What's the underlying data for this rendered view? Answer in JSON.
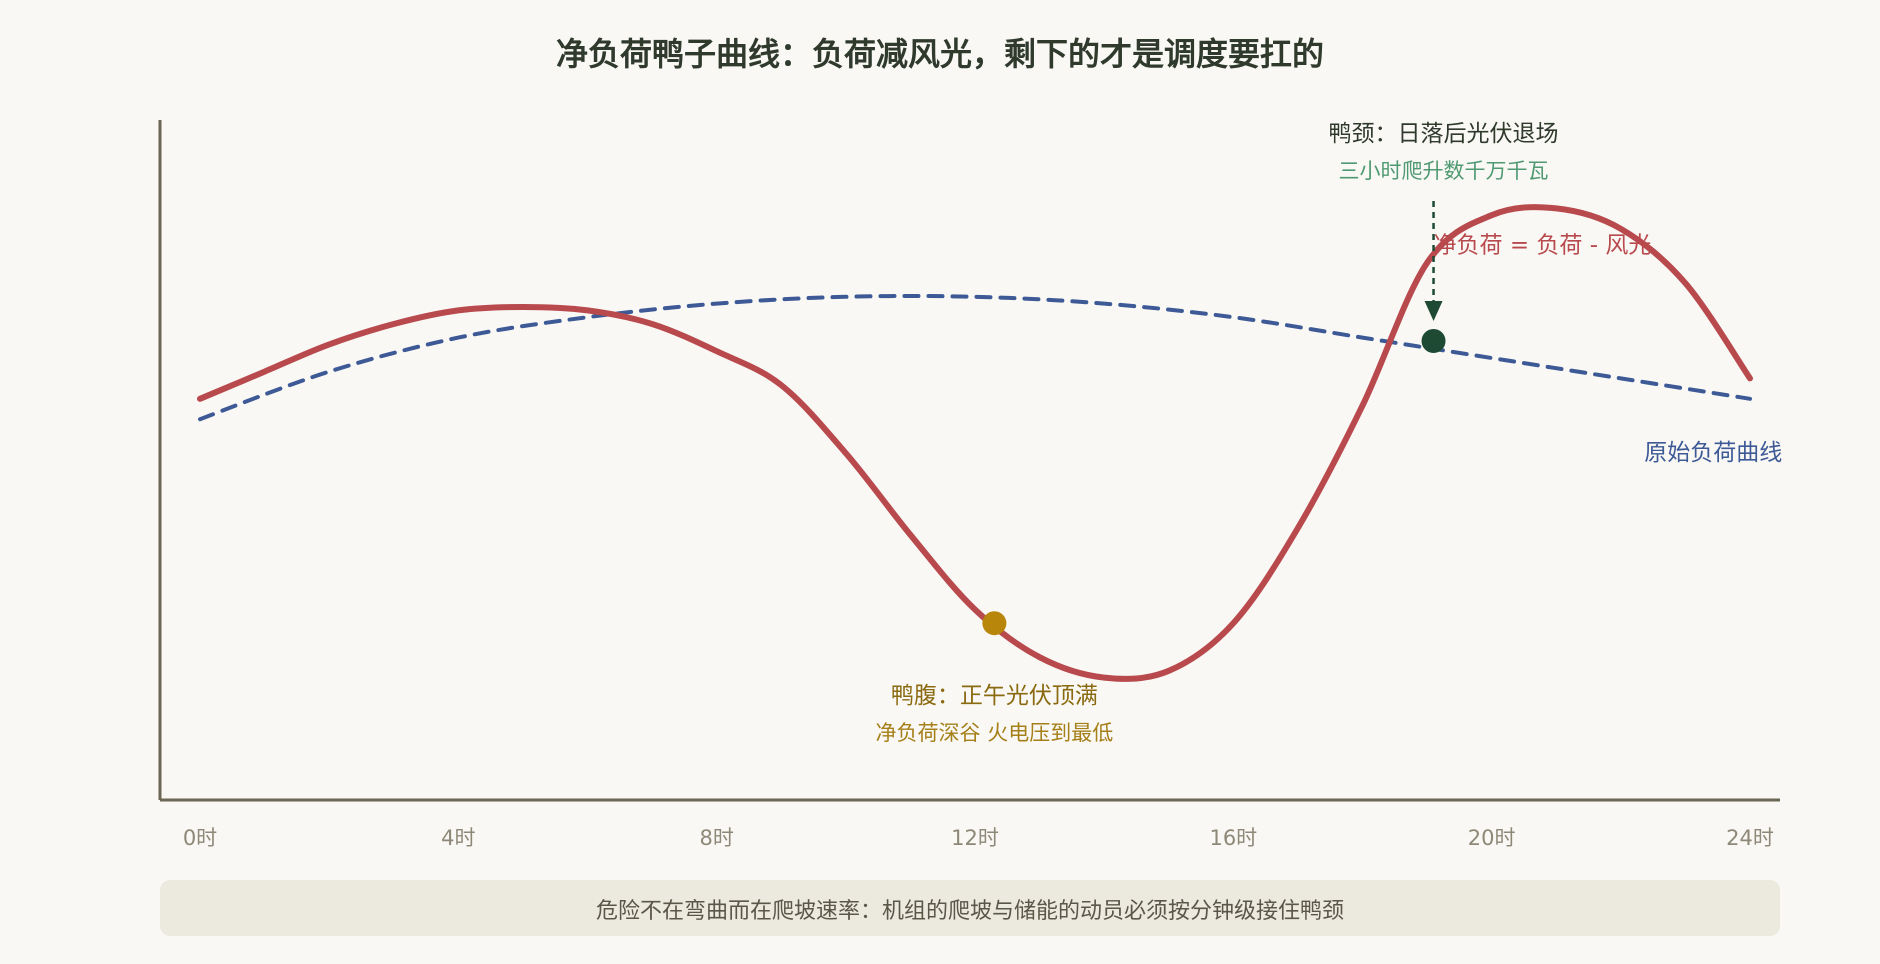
{
  "colors": {
    "background": "#faf8f4",
    "title": "#2f3a2c",
    "axis": "#6b6753",
    "tick": "#8d8877",
    "net_load": "#b84a4e",
    "original_load": "#3d5a96",
    "belly": "#b8860b",
    "neck": "#1e4a34",
    "neck_sub": "#4f9a72",
    "footer_bg": "#ece9df",
    "footer_text": "#5a5648"
  },
  "chart_data": {
    "type": "line",
    "title": "净负荷鸭子曲线：负荷减风光，剩下的才是调度要扛的",
    "xlabel": "",
    "ylabel": "",
    "x_ticks": [
      "0时",
      "4时",
      "8时",
      "12时",
      "16时",
      "20时",
      "24时"
    ],
    "xlim": [
      0,
      24
    ],
    "ylim": [
      0,
      100
    ],
    "grid": false,
    "series": [
      {
        "name": "原始负荷曲线",
        "style": "dashed",
        "color": "#3d5a96",
        "x": [
          0,
          2,
          4,
          6,
          8,
          10,
          12,
          14,
          16,
          18,
          20,
          22,
          24
        ],
        "y": [
          56,
          63,
          68,
          71,
          73,
          74,
          74,
          73,
          71,
          68,
          65,
          62,
          59
        ]
      },
      {
        "name": "净负荷 = 负荷 - 风光",
        "style": "solid",
        "color": "#b84a4e",
        "x": [
          0,
          1,
          2,
          3,
          4,
          5,
          6,
          7,
          8,
          9,
          10,
          11,
          12,
          13,
          14,
          15,
          16,
          17,
          18,
          19,
          20,
          21,
          22,
          23,
          24
        ],
        "y": [
          59,
          63,
          67,
          70,
          72,
          72.5,
          72,
          70,
          66,
          61,
          51,
          39,
          28,
          21,
          18,
          19,
          26,
          40,
          58,
          79,
          86,
          87,
          84,
          76,
          62
        ]
      }
    ],
    "annotations": [
      {
        "name": "belly",
        "x": 12.3,
        "y": 26,
        "title": "鸭腹：正午光伏顶满",
        "subtitle": "净负荷深谷 火电压到最低"
      },
      {
        "name": "neck",
        "x": 19.1,
        "y": 67.5,
        "title": "鸭颈：日落后光伏退场",
        "subtitle": "三小时爬升数千万千瓦"
      }
    ],
    "footer_note": "危险不在弯曲而在爬坡速率：机组的爬坡与储能的动员必须按分钟级接住鸭颈"
  }
}
